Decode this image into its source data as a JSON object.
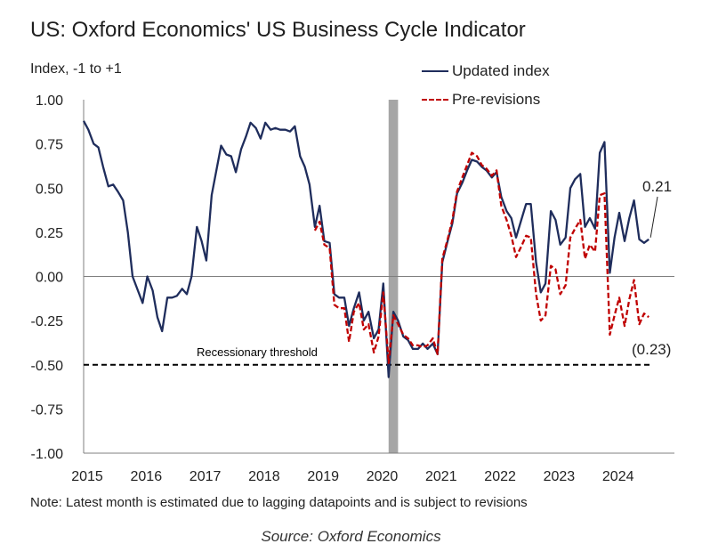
{
  "chart_data": {
    "type": "line",
    "title": "US: Oxford Economics' US Business Cycle Indicator",
    "ylabel": "Index, -1 to +1",
    "xlabel": "",
    "ylim": [
      -1.0,
      1.0
    ],
    "xlim": [
      2015,
      2025
    ],
    "y_ticks": [
      "1.00",
      "0.75",
      "0.50",
      "0.25",
      "0.00",
      "-0.25",
      "-0.50",
      "-0.75",
      "-1.00"
    ],
    "y_tick_values": [
      1.0,
      0.75,
      0.5,
      0.25,
      0.0,
      -0.25,
      -0.5,
      -0.75,
      -1.0
    ],
    "x_ticks": [
      "2015",
      "2016",
      "2017",
      "2018",
      "2019",
      "2020",
      "2021",
      "2022",
      "2023",
      "2024"
    ],
    "x_tick_values": [
      2015,
      2016,
      2017,
      2018,
      2019,
      2020,
      2021,
      2022,
      2023,
      2024
    ],
    "grid": false,
    "legend_position": "top-right",
    "recession_band": {
      "start": 2020.17,
      "end": 2020.33,
      "color": "#a6a6a6"
    },
    "threshold": {
      "value": -0.5,
      "label": "Recessionary threshold"
    },
    "series": [
      {
        "name": "Updated index",
        "color": "#1f2d5c",
        "style": "solid",
        "points": [
          [
            2015.0,
            0.88
          ],
          [
            2015.08,
            0.83
          ],
          [
            2015.17,
            0.75
          ],
          [
            2015.25,
            0.73
          ],
          [
            2015.33,
            0.62
          ],
          [
            2015.42,
            0.51
          ],
          [
            2015.5,
            0.52
          ],
          [
            2015.58,
            0.48
          ],
          [
            2015.67,
            0.43
          ],
          [
            2015.75,
            0.25
          ],
          [
            2015.83,
            0.0
          ],
          [
            2015.92,
            -0.08
          ],
          [
            2016.0,
            -0.15
          ],
          [
            2016.08,
            0.0
          ],
          [
            2016.17,
            -0.08
          ],
          [
            2016.25,
            -0.23
          ],
          [
            2016.33,
            -0.31
          ],
          [
            2016.42,
            -0.12
          ],
          [
            2016.5,
            -0.12
          ],
          [
            2016.58,
            -0.11
          ],
          [
            2016.67,
            -0.07
          ],
          [
            2016.75,
            -0.1
          ],
          [
            2016.83,
            0.0
          ],
          [
            2016.92,
            0.28
          ],
          [
            2017.0,
            0.2
          ],
          [
            2017.08,
            0.09
          ],
          [
            2017.17,
            0.46
          ],
          [
            2017.25,
            0.6
          ],
          [
            2017.33,
            0.74
          ],
          [
            2017.42,
            0.69
          ],
          [
            2017.5,
            0.68
          ],
          [
            2017.58,
            0.59
          ],
          [
            2017.67,
            0.72
          ],
          [
            2017.75,
            0.79
          ],
          [
            2017.83,
            0.87
          ],
          [
            2017.92,
            0.84
          ],
          [
            2018.0,
            0.78
          ],
          [
            2018.08,
            0.87
          ],
          [
            2018.17,
            0.83
          ],
          [
            2018.25,
            0.84
          ],
          [
            2018.33,
            0.83
          ],
          [
            2018.42,
            0.83
          ],
          [
            2018.5,
            0.82
          ],
          [
            2018.58,
            0.85
          ],
          [
            2018.67,
            0.68
          ],
          [
            2018.75,
            0.62
          ],
          [
            2018.83,
            0.52
          ],
          [
            2018.92,
            0.28
          ],
          [
            2019.0,
            0.4
          ],
          [
            2019.08,
            0.2
          ],
          [
            2019.17,
            0.19
          ],
          [
            2019.25,
            -0.1
          ],
          [
            2019.33,
            -0.12
          ],
          [
            2019.42,
            -0.12
          ],
          [
            2019.5,
            -0.28
          ],
          [
            2019.58,
            -0.18
          ],
          [
            2019.67,
            -0.09
          ],
          [
            2019.75,
            -0.25
          ],
          [
            2019.83,
            -0.2
          ],
          [
            2019.92,
            -0.35
          ],
          [
            2020.0,
            -0.3
          ],
          [
            2020.08,
            -0.04
          ],
          [
            2020.17,
            -0.57
          ],
          [
            2020.25,
            -0.2
          ],
          [
            2020.33,
            -0.25
          ],
          [
            2020.42,
            -0.34
          ],
          [
            2020.5,
            -0.36
          ],
          [
            2020.58,
            -0.41
          ],
          [
            2020.67,
            -0.41
          ],
          [
            2020.75,
            -0.38
          ],
          [
            2020.83,
            -0.41
          ],
          [
            2020.92,
            -0.38
          ],
          [
            2021.0,
            -0.44
          ],
          [
            2021.08,
            0.08
          ],
          [
            2021.17,
            0.2
          ],
          [
            2021.25,
            0.3
          ],
          [
            2021.33,
            0.47
          ],
          [
            2021.42,
            0.53
          ],
          [
            2021.5,
            0.6
          ],
          [
            2021.58,
            0.66
          ],
          [
            2021.67,
            0.65
          ],
          [
            2021.75,
            0.62
          ],
          [
            2021.83,
            0.6
          ],
          [
            2021.92,
            0.56
          ],
          [
            2022.0,
            0.59
          ],
          [
            2022.08,
            0.45
          ],
          [
            2022.17,
            0.37
          ],
          [
            2022.25,
            0.33
          ],
          [
            2022.33,
            0.22
          ],
          [
            2022.42,
            0.32
          ],
          [
            2022.5,
            0.41
          ],
          [
            2022.58,
            0.41
          ],
          [
            2022.67,
            0.08
          ],
          [
            2022.75,
            -0.09
          ],
          [
            2022.83,
            -0.04
          ],
          [
            2022.92,
            0.37
          ],
          [
            2023.0,
            0.32
          ],
          [
            2023.08,
            0.18
          ],
          [
            2023.17,
            0.22
          ],
          [
            2023.25,
            0.5
          ],
          [
            2023.33,
            0.55
          ],
          [
            2023.42,
            0.58
          ],
          [
            2023.5,
            0.28
          ],
          [
            2023.58,
            0.33
          ],
          [
            2023.67,
            0.27
          ],
          [
            2023.75,
            0.7
          ],
          [
            2023.83,
            0.76
          ],
          [
            2023.92,
            0.02
          ],
          [
            2024.0,
            0.22
          ],
          [
            2024.08,
            0.36
          ],
          [
            2024.17,
            0.2
          ],
          [
            2024.25,
            0.33
          ],
          [
            2024.33,
            0.43
          ],
          [
            2024.42,
            0.21
          ],
          [
            2024.5,
            0.19
          ],
          [
            2024.58,
            0.21
          ]
        ]
      },
      {
        "name": "Pre-revisions",
        "color": "#c00000",
        "style": "dashed",
        "points": [
          [
            2018.92,
            0.26
          ],
          [
            2019.0,
            0.31
          ],
          [
            2019.08,
            0.18
          ],
          [
            2019.17,
            0.16
          ],
          [
            2019.25,
            -0.16
          ],
          [
            2019.33,
            -0.18
          ],
          [
            2019.42,
            -0.18
          ],
          [
            2019.5,
            -0.37
          ],
          [
            2019.58,
            -0.2
          ],
          [
            2019.67,
            -0.15
          ],
          [
            2019.75,
            -0.3
          ],
          [
            2019.83,
            -0.27
          ],
          [
            2019.92,
            -0.43
          ],
          [
            2020.0,
            -0.34
          ],
          [
            2020.08,
            -0.09
          ],
          [
            2020.17,
            -0.49
          ],
          [
            2020.25,
            -0.22
          ],
          [
            2020.33,
            -0.27
          ],
          [
            2020.42,
            -0.33
          ],
          [
            2020.5,
            -0.35
          ],
          [
            2020.58,
            -0.39
          ],
          [
            2020.67,
            -0.39
          ],
          [
            2020.75,
            -0.4
          ],
          [
            2020.83,
            -0.39
          ],
          [
            2020.92,
            -0.35
          ],
          [
            2021.0,
            -0.44
          ],
          [
            2021.08,
            0.1
          ],
          [
            2021.17,
            0.21
          ],
          [
            2021.25,
            0.32
          ],
          [
            2021.33,
            0.48
          ],
          [
            2021.42,
            0.56
          ],
          [
            2021.5,
            0.63
          ],
          [
            2021.58,
            0.7
          ],
          [
            2021.67,
            0.68
          ],
          [
            2021.75,
            0.63
          ],
          [
            2021.83,
            0.61
          ],
          [
            2021.92,
            0.57
          ],
          [
            2022.0,
            0.6
          ],
          [
            2022.08,
            0.4
          ],
          [
            2022.17,
            0.32
          ],
          [
            2022.25,
            0.23
          ],
          [
            2022.33,
            0.11
          ],
          [
            2022.42,
            0.17
          ],
          [
            2022.5,
            0.23
          ],
          [
            2022.58,
            0.22
          ],
          [
            2022.67,
            -0.1
          ],
          [
            2022.75,
            -0.25
          ],
          [
            2022.83,
            -0.22
          ],
          [
            2022.92,
            0.06
          ],
          [
            2023.0,
            0.04
          ],
          [
            2023.08,
            -0.1
          ],
          [
            2023.17,
            -0.05
          ],
          [
            2023.25,
            0.22
          ],
          [
            2023.33,
            0.27
          ],
          [
            2023.42,
            0.32
          ],
          [
            2023.5,
            0.1
          ],
          [
            2023.58,
            0.18
          ],
          [
            2023.67,
            0.14
          ],
          [
            2023.75,
            0.46
          ],
          [
            2023.83,
            0.47
          ],
          [
            2023.92,
            -0.33
          ],
          [
            2024.0,
            -0.22
          ],
          [
            2024.08,
            -0.12
          ],
          [
            2024.17,
            -0.28
          ],
          [
            2024.25,
            -0.13
          ],
          [
            2024.33,
            -0.02
          ],
          [
            2024.42,
            -0.27
          ],
          [
            2024.5,
            -0.21
          ],
          [
            2024.58,
            -0.23
          ]
        ]
      }
    ],
    "annotations": [
      {
        "text": "0.21",
        "series": "Updated index"
      },
      {
        "text": "(0.23)",
        "series": "Pre-revisions"
      }
    ]
  },
  "note": "Note: Latest month is estimated due to lagging datapoints and is subject to revisions",
  "source": "Source: Oxford Economics"
}
